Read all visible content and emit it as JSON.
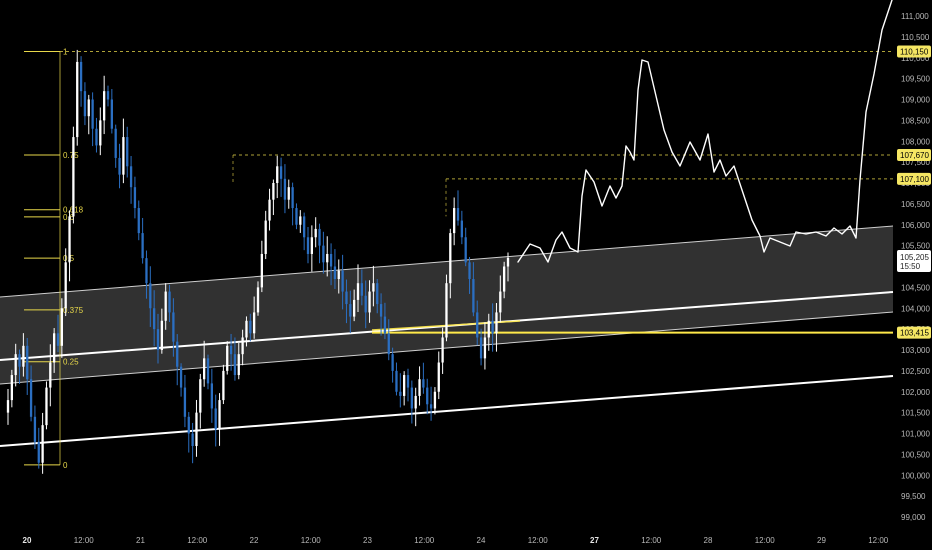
{
  "chart_data": {
    "type": "candlestick",
    "y_axis": {
      "ylim": [
        98900,
        111500
      ],
      "ticks": [
        99000,
        99500,
        100000,
        100500,
        101000,
        101500,
        102000,
        102500,
        103000,
        103500,
        104000,
        104500,
        105000,
        105500,
        106000,
        106500,
        107000,
        107500,
        108000,
        108500,
        109000,
        109500,
        110000,
        110500,
        111000
      ],
      "tick_labels": [
        "99,000",
        "99,500",
        "100,000",
        "100,500",
        "101,000",
        "101,500",
        "102,000",
        "102,500",
        "103,000",
        "103,500",
        "104,000",
        "104,500",
        "105,000",
        "105,500",
        "106,000",
        "106,500",
        "107,000",
        "107,500",
        "108,000",
        "108,500",
        "109,000",
        "109,500",
        "110,000",
        "110,500",
        "111,000"
      ]
    },
    "x_axis": {
      "ticks": [
        {
          "label": "20",
          "t": 0,
          "major": true
        },
        {
          "label": "12:00",
          "t": 0.5
        },
        {
          "label": "21",
          "t": 1,
          "major": false
        },
        {
          "label": "12:00",
          "t": 1.5
        },
        {
          "label": "22",
          "t": 2,
          "major": false
        },
        {
          "label": "12:00",
          "t": 2.5
        },
        {
          "label": "23",
          "t": 3,
          "major": false
        },
        {
          "label": "12:00",
          "t": 3.5
        },
        {
          "label": "24",
          "t": 4,
          "major": false
        },
        {
          "label": "12:00",
          "t": 4.5
        },
        {
          "label": "27",
          "t": 5,
          "major": true
        },
        {
          "label": "12:00",
          "t": 5.5
        },
        {
          "label": "28",
          "t": 6,
          "major": false
        },
        {
          "label": "12:00",
          "t": 6.5
        },
        {
          "label": "29",
          "t": 7,
          "major": false
        },
        {
          "label": "12:00",
          "t": 7.5
        }
      ]
    },
    "price_badges": [
      {
        "value": 110150,
        "label": "110,150",
        "color": "#f5e663"
      },
      {
        "value": 107670,
        "label": "107,670",
        "color": "#f5e663"
      },
      {
        "value": 107100,
        "label": "107,100",
        "color": "#f5e663"
      },
      {
        "value": 103415,
        "label": "103,415",
        "color": "#f5e663"
      }
    ],
    "last_price": {
      "value": 105205,
      "label": "105,205",
      "countdown": "15:50"
    },
    "fib_levels": [
      {
        "ratio": 1,
        "label": "1",
        "value": 110150
      },
      {
        "ratio": 0.75,
        "label": "0.75",
        "value": 107670
      },
      {
        "ratio": 0.618,
        "label": "0.618",
        "value": 106360
      },
      {
        "ratio": 0.6,
        "label": "0.6",
        "value": 106190
      },
      {
        "ratio": 0.5,
        "label": "0.5",
        "value": 105200
      },
      {
        "ratio": 0.375,
        "label": "0.375",
        "value": 103960
      },
      {
        "ratio": 0.25,
        "label": "0.25",
        "value": 102720
      },
      {
        "ratio": 0,
        "label": "0",
        "value": 100250
      }
    ],
    "candles_close": [
      101800,
      102400,
      102900,
      102600,
      103100,
      102300,
      101400,
      100800,
      100300,
      101200,
      102100,
      102700,
      103400,
      103100,
      104000,
      105100,
      106200,
      108100,
      109900,
      109200,
      108600,
      109000,
      108300,
      107900,
      108500,
      109200,
      109000,
      108300,
      107600,
      107200,
      108100,
      107400,
      106900,
      106400,
      105800,
      105200,
      104600,
      104000,
      103500,
      103000,
      103700,
      104400,
      103900,
      103200,
      102600,
      102100,
      101400,
      101000,
      100700,
      101500,
      102300,
      102800,
      102200,
      101600,
      101100,
      101800,
      102500,
      103100,
      102900,
      102400,
      102900,
      103300,
      103700,
      103400,
      103900,
      104500,
      105300,
      106100,
      106600,
      107000,
      107400,
      107100,
      106600,
      106900,
      106400,
      106000,
      106200,
      105700,
      105300,
      105700,
      105900,
      105500,
      105100,
      105300,
      105000,
      104700,
      104900,
      104400,
      104100,
      103800,
      104200,
      104600,
      104300,
      103900,
      104400,
      104600,
      104100,
      103800,
      103400,
      102900,
      102500,
      102000,
      101900,
      102400,
      102100,
      101600,
      101900,
      102300,
      102100,
      101700,
      101600,
      102000,
      102700,
      103300,
      104600,
      105800,
      106400,
      106100,
      105700,
      105100,
      104700,
      103900,
      103300,
      102800,
      103300,
      103700,
      103400,
      103900,
      104400,
      105000,
      105205
    ],
    "projection_path_desc": "hand-drawn forecast"
  },
  "colors": {
    "background": "#000000",
    "bull": "#ffffff",
    "bear": "#2b6fc2",
    "fib": "#e8d84a",
    "channel_fill": "#3a3a3a",
    "channel_line": "#ffffff",
    "support_line": "#ffe94a",
    "axis_text": "#b9b9b9"
  }
}
